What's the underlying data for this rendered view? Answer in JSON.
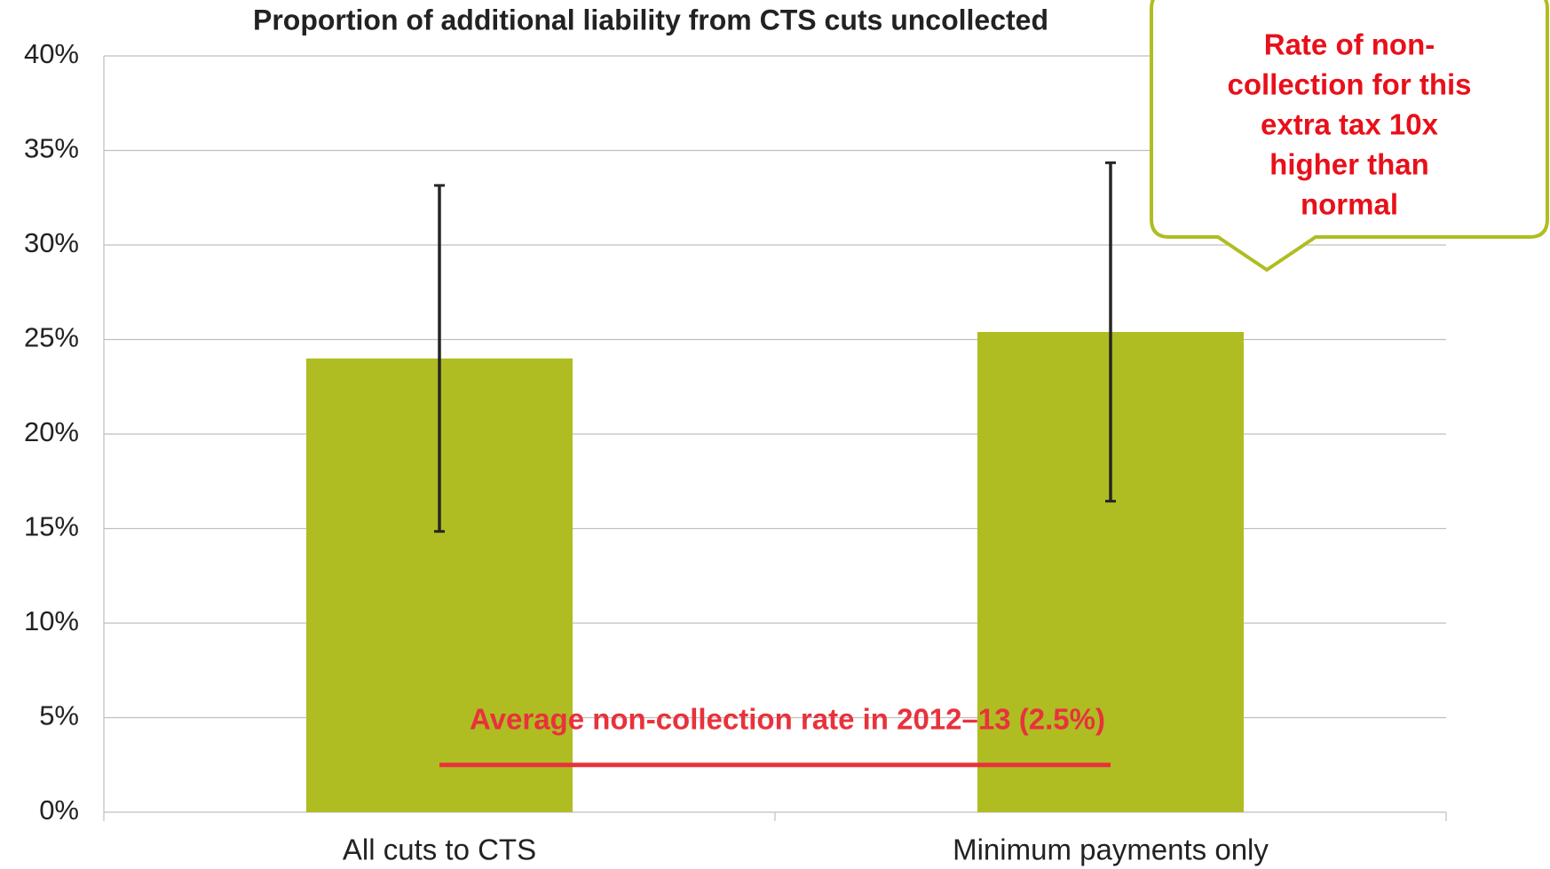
{
  "chart_data": {
    "type": "bar",
    "title": "Proportion of additional liability from CTS cuts uncollected",
    "categories": [
      "All cuts to CTS",
      "Minimum payments only"
    ],
    "values": [
      24.0,
      25.4
    ],
    "errors": [
      9.15,
      8.95
    ],
    "color": "#afbd22",
    "ylim": [
      0,
      40
    ],
    "yticks": [
      {
        "value": 0,
        "label": "0%"
      },
      {
        "value": 5,
        "label": "5%"
      },
      {
        "value": 10,
        "label": "10%"
      },
      {
        "value": 15,
        "label": "15%"
      },
      {
        "value": 20,
        "label": "20%"
      },
      {
        "value": 25,
        "label": "25%"
      },
      {
        "value": 30,
        "label": "30%"
      },
      {
        "value": 35,
        "label": "35%"
      },
      {
        "value": 40,
        "label": "40%"
      }
    ],
    "grid": true,
    "reference_line": {
      "label": "Average non-collection rate in 2012–13 (2.5%)",
      "value": 2.5,
      "color": "#e8323c"
    },
    "callout": [
      "Rate of non-",
      "collection for this",
      "extra tax 10x",
      "higher than",
      "normal"
    ]
  }
}
